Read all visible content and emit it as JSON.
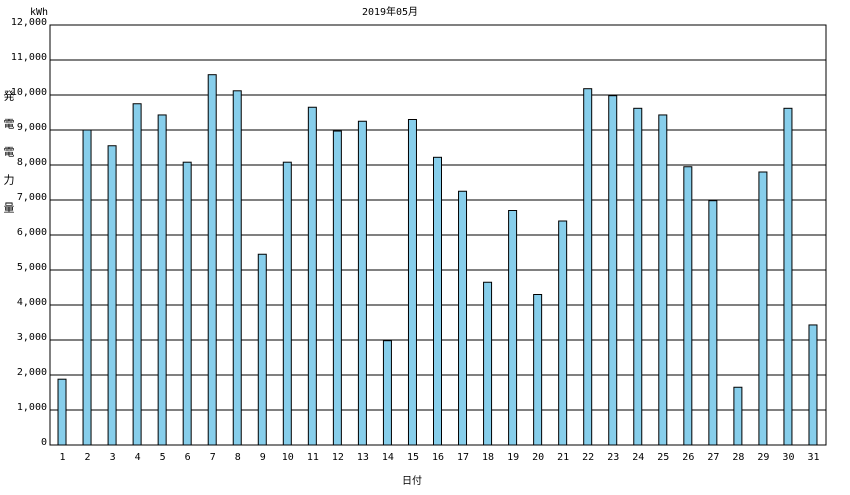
{
  "chart_data": {
    "type": "bar",
    "title": "2019年05月",
    "y_unit": "kWh",
    "y_label": "発電電力量",
    "x_label": "日付",
    "categories": [
      "1",
      "2",
      "3",
      "4",
      "5",
      "6",
      "7",
      "8",
      "9",
      "10",
      "11",
      "12",
      "13",
      "14",
      "15",
      "16",
      "17",
      "18",
      "19",
      "20",
      "21",
      "22",
      "23",
      "24",
      "25",
      "26",
      "27",
      "28",
      "29",
      "30",
      "31"
    ],
    "values": [
      1880,
      9000,
      8550,
      9750,
      9430,
      8080,
      10580,
      10120,
      5450,
      8080,
      9650,
      8970,
      9250,
      2980,
      9300,
      8220,
      7250,
      4650,
      6700,
      4300,
      6400,
      10180,
      9980,
      9620,
      9430,
      7950,
      6980,
      1650,
      7800,
      9620,
      3430
    ],
    "color": "#87ceeb",
    "ylim": [
      0,
      12000
    ],
    "yticks": [
      0,
      {
        "value": 1000,
        "label": "1,000"
      },
      {
        "value": 2000,
        "label": "2,000"
      },
      {
        "value": 3000,
        "label": "3,000"
      },
      {
        "value": 4000,
        "label": "4,000"
      },
      {
        "value": 5000,
        "label": "5,000"
      },
      {
        "value": 6000,
        "label": "6,000"
      },
      {
        "value": 7000,
        "label": "7,000"
      },
      {
        "value": 8000,
        "label": "8,000"
      },
      {
        "value": 9000,
        "label": "9,000"
      },
      {
        "value": 10000,
        "label": "10,000"
      },
      {
        "value": 11000,
        "label": "11,000"
      },
      {
        "value": 12000,
        "label": "12,000"
      }
    ],
    "grid": true
  }
}
